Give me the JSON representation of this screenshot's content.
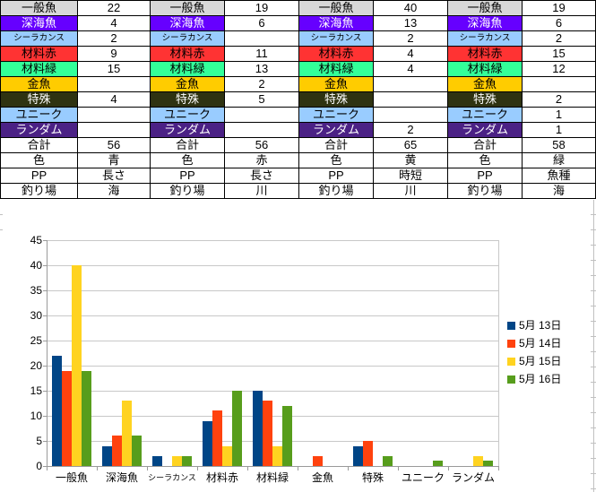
{
  "table": {
    "row_labels": [
      "一般魚",
      "深海魚",
      "シーラカンス",
      "材料赤",
      "材料緑",
      "金魚",
      "特殊",
      "ユニーク",
      "ランダム",
      "合計",
      "色",
      "PP",
      "釣り場"
    ],
    "row_styles": [
      {
        "bg": "#d8d8d8",
        "fg": "#000000"
      },
      {
        "bg": "#6600ff",
        "fg": "#ffffff"
      },
      {
        "bg": "#99ccff",
        "fg": "#000000"
      },
      {
        "bg": "#ff3333",
        "fg": "#000000"
      },
      {
        "bg": "#33ff99",
        "fg": "#000000"
      },
      {
        "bg": "#ffcc00",
        "fg": "#000000"
      },
      {
        "bg": "#2f3311",
        "fg": "#ffffff"
      },
      {
        "bg": "#99ccff",
        "fg": "#000000"
      },
      {
        "bg": "#4b2185",
        "fg": "#ffffff"
      },
      {
        "bg": "#ffffff",
        "fg": "#000000"
      },
      {
        "bg": "#ffffff",
        "fg": "#000000"
      },
      {
        "bg": "#ffffff",
        "fg": "#000000"
      },
      {
        "bg": "#ffffff",
        "fg": "#000000"
      }
    ],
    "groups": [
      {
        "values": [
          "22",
          "4",
          "2",
          "9",
          "15",
          "",
          "4",
          "",
          "",
          "56",
          "青",
          "長さ",
          "海"
        ]
      },
      {
        "values": [
          "19",
          "6",
          "",
          "11",
          "13",
          "2",
          "5",
          "",
          "",
          "56",
          "赤",
          "長さ",
          "川"
        ]
      },
      {
        "values": [
          "40",
          "13",
          "2",
          "4",
          "4",
          "",
          "",
          "",
          "2",
          "65",
          "黄",
          "時短",
          "川"
        ]
      },
      {
        "values": [
          "19",
          "6",
          "2",
          "15",
          "12",
          "",
          "2",
          "1",
          "1",
          "58",
          "緑",
          "魚種",
          "海"
        ]
      }
    ]
  },
  "chart_data": {
    "type": "bar",
    "title": "",
    "categories": [
      "一般魚",
      "深海魚",
      "シーラカンス",
      "材料赤",
      "材料緑",
      "金魚",
      "特殊",
      "ユニーク",
      "ランダム"
    ],
    "series": [
      {
        "name": "5月 13日",
        "color": "#004586",
        "values": [
          22,
          4,
          2,
          9,
          15,
          0,
          4,
          0,
          0
        ]
      },
      {
        "name": "5月 14日",
        "color": "#ff420e",
        "values": [
          19,
          6,
          0,
          11,
          13,
          2,
          5,
          0,
          0
        ]
      },
      {
        "name": "5月 15日",
        "color": "#ffd320",
        "values": [
          40,
          13,
          2,
          4,
          4,
          0,
          0,
          0,
          2
        ]
      },
      {
        "name": "5月 16日",
        "color": "#579d1c",
        "values": [
          19,
          6,
          2,
          15,
          12,
          0,
          2,
          1,
          1
        ]
      }
    ],
    "ylim": [
      0,
      45
    ],
    "ytick_step": 5,
    "ytick_labels": [
      "0",
      "5",
      "10",
      "15",
      "20",
      "25",
      "30",
      "35",
      "40",
      "45"
    ],
    "grid": true,
    "legend_position": "right",
    "gridline_color": "#c8c8c8",
    "axis_color": "#9a9a9a"
  }
}
